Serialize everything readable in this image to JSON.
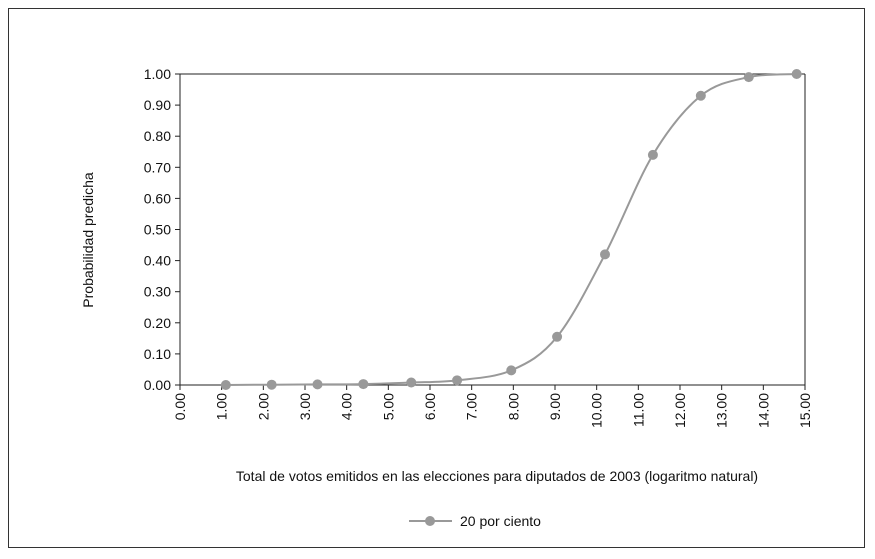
{
  "chart_data": {
    "type": "line",
    "title": "",
    "xlabel": "Total de votos emitidos en las elecciones para diputados de 2003 (logaritmo natural)",
    "ylabel": "Probabilidad predicha",
    "xlim": [
      0,
      15
    ],
    "ylim": [
      0,
      1
    ],
    "x_ticks": [
      "0.00",
      "1.00",
      "2.00",
      "3.00",
      "4.00",
      "5.00",
      "6.00",
      "7.00",
      "8.00",
      "9.00",
      "10.00",
      "11.00",
      "12.00",
      "13.00",
      "14.00",
      "15.00"
    ],
    "y_ticks": [
      "0.00",
      "0.10",
      "0.20",
      "0.30",
      "0.40",
      "0.50",
      "0.60",
      "0.70",
      "0.80",
      "0.90",
      "1.00"
    ],
    "grid": false,
    "legend_position": "bottom",
    "series": [
      {
        "name": "20 por ciento",
        "color": "#999999",
        "x": [
          1.1,
          2.2,
          3.3,
          4.4,
          5.55,
          6.65,
          7.95,
          9.05,
          10.2,
          11.35,
          12.5,
          13.65,
          14.8
        ],
        "y": [
          0.0,
          0.001,
          0.002,
          0.003,
          0.008,
          0.015,
          0.047,
          0.155,
          0.42,
          0.74,
          0.93,
          0.99,
          1.0
        ]
      }
    ]
  }
}
